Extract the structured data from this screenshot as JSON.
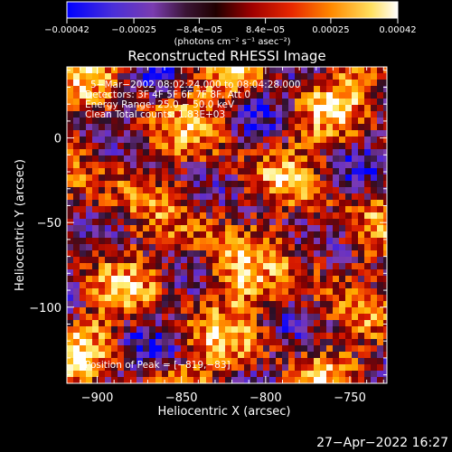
{
  "chart_data": {
    "type": "heatmap",
    "title": "Reconstructed RHESSI Image",
    "xlabel": "Heliocentric X (arcsec)",
    "ylabel": "Heliocentric Y (arcsec)",
    "xlim": [
      -918,
      -728
    ],
    "ylim": [
      -145,
      42
    ],
    "xticks": [
      -900,
      -850,
      -800,
      -750
    ],
    "xtick_labels": [
      "−900",
      "−850",
      "−800",
      "−750"
    ],
    "yticks": [
      0,
      -50,
      -100
    ],
    "ytick_labels": [
      "0",
      "−50",
      "−100"
    ],
    "colorbar": {
      "ticks": [
        -0.00042,
        -0.00025,
        -8.4e-05,
        8.4e-05,
        0.00025,
        0.00042
      ],
      "tick_labels": [
        "−0.00042",
        "−0.00025",
        "−8.4e−05",
        "8.4e−05",
        "0.00025",
        "0.00042"
      ],
      "range": [
        -0.00042,
        0.00042
      ],
      "unit_label": "(photons cm⁻² s⁻¹ asec⁻²)",
      "colors": [
        "#0000ff",
        "#5a2bd0",
        "#7d3bb0",
        "#2a0f25",
        "#8a0000",
        "#d81a00",
        "#ff6a00",
        "#ffb000",
        "#fff07a",
        "#ffffff"
      ]
    },
    "info": [
      "5−Mar−2002 08:02:24.000 to 08:04:28.000",
      "Detectors: 3F 4F 5F 6F 7F 8F, Att 0",
      "Energy Range: 25.0 − 50.0 keV",
      "Clean     Total counts: 1.83E+03"
    ],
    "peak_label": "Position of Peak = [−819,−83]",
    "peak": [
      -819,
      -83
    ]
  },
  "footer": {
    "timestamp": "27−Apr−2022 16:27"
  }
}
